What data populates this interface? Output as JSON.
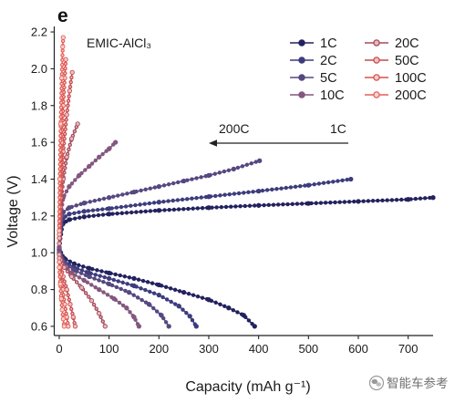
{
  "chart_data": {
    "type": "line",
    "panel_label": "e",
    "xlabel": "Capacity (mAh g⁻¹)",
    "ylabel": "Voltage (V)",
    "xlim": [
      -10,
      750
    ],
    "ylim": [
      0.55,
      2.23
    ],
    "x_ticks": [
      "0",
      "100",
      "200",
      "300",
      "400",
      "500",
      "600",
      "700"
    ],
    "y_ticks": [
      "0.6",
      "0.8",
      "1.0",
      "1.2",
      "1.4",
      "1.6",
      "1.8",
      "2.0",
      "2.2"
    ],
    "grid": false,
    "legend_position": "top-right",
    "annotations": {
      "electrolyte": "EMIC-AlCl₃",
      "arrow_to": "200C",
      "arrow_from": "1C"
    },
    "series": [
      {
        "name": "1C",
        "color": "#23225e",
        "marker_fill": "#23225e",
        "charge": {
          "x": [
            0,
            3,
            8,
            20,
            50,
            100,
            200,
            300,
            400,
            500,
            600,
            700,
            750
          ],
          "y": [
            1.0,
            1.1,
            1.16,
            1.18,
            1.195,
            1.21,
            1.23,
            1.245,
            1.257,
            1.268,
            1.279,
            1.29,
            1.3
          ]
        },
        "discharge": {
          "x": [
            0,
            3,
            10,
            30,
            60,
            100,
            150,
            200,
            250,
            300,
            340,
            370,
            392
          ],
          "y": [
            1.03,
            1.0,
            0.97,
            0.94,
            0.915,
            0.89,
            0.86,
            0.825,
            0.785,
            0.745,
            0.7,
            0.66,
            0.6
          ]
        }
      },
      {
        "name": "2C",
        "color": "#3d3c7c",
        "marker_fill": "#3d3c7c",
        "charge": {
          "x": [
            0,
            3,
            8,
            20,
            50,
            100,
            200,
            300,
            400,
            500,
            585
          ],
          "y": [
            1.0,
            1.12,
            1.19,
            1.21,
            1.225,
            1.24,
            1.275,
            1.305,
            1.335,
            1.367,
            1.4
          ]
        },
        "discharge": {
          "x": [
            0,
            3,
            10,
            30,
            60,
            100,
            150,
            200,
            240,
            262,
            275
          ],
          "y": [
            1.02,
            0.99,
            0.955,
            0.92,
            0.89,
            0.86,
            0.82,
            0.77,
            0.71,
            0.655,
            0.6
          ]
        }
      },
      {
        "name": "5C",
        "color": "#564880",
        "marker_fill": "#564880",
        "charge": {
          "x": [
            0,
            3,
            8,
            20,
            50,
            100,
            150,
            200,
            250,
            300,
            350,
            402
          ],
          "y": [
            1.02,
            1.15,
            1.22,
            1.245,
            1.27,
            1.3,
            1.33,
            1.36,
            1.39,
            1.42,
            1.455,
            1.5
          ]
        },
        "discharge": {
          "x": [
            0,
            3,
            10,
            30,
            60,
            100,
            140,
            180,
            205,
            220
          ],
          "y": [
            1.01,
            0.98,
            0.945,
            0.905,
            0.87,
            0.83,
            0.785,
            0.72,
            0.66,
            0.6
          ]
        }
      },
      {
        "name": "10C",
        "color": "#83577f",
        "marker_fill": "#83577f",
        "charge": {
          "x": [
            0,
            3,
            8,
            20,
            40,
            60,
            80,
            100,
            113
          ],
          "y": [
            1.03,
            1.2,
            1.3,
            1.36,
            1.42,
            1.47,
            1.52,
            1.565,
            1.6
          ]
        },
        "discharge": {
          "x": [
            0,
            3,
            10,
            25,
            50,
            80,
            110,
            135,
            150,
            160
          ],
          "y": [
            1.0,
            0.97,
            0.93,
            0.89,
            0.85,
            0.8,
            0.75,
            0.7,
            0.65,
            0.6
          ]
        }
      },
      {
        "name": "20C",
        "color": "#a24b5b",
        "marker_fill": "#e8b9bf",
        "charge": {
          "x": [
            0,
            3,
            8,
            15,
            25,
            37
          ],
          "y": [
            1.05,
            1.25,
            1.4,
            1.52,
            1.62,
            1.7
          ]
        },
        "discharge": {
          "x": [
            0,
            3,
            10,
            25,
            45,
            65,
            80,
            92
          ],
          "y": [
            0.99,
            0.96,
            0.92,
            0.87,
            0.81,
            0.74,
            0.67,
            0.6
          ]
        }
      },
      {
        "name": "50C",
        "color": "#c64b4f",
        "marker_fill": "#f1c1c1",
        "charge": {
          "x": [
            0,
            3,
            8,
            15,
            21,
            26
          ],
          "y": [
            1.08,
            1.3,
            1.55,
            1.75,
            1.88,
            1.98
          ]
        },
        "discharge": {
          "x": [
            0,
            3,
            8,
            15,
            22,
            28,
            32
          ],
          "y": [
            0.97,
            0.93,
            0.87,
            0.8,
            0.72,
            0.65,
            0.6
          ]
        }
      },
      {
        "name": "100C",
        "color": "#d9504b",
        "marker_fill": "#f6cccc",
        "charge": {
          "x": [
            0,
            2,
            5,
            8,
            11,
            13
          ],
          "y": [
            1.1,
            1.35,
            1.6,
            1.8,
            1.95,
            2.05
          ]
        },
        "discharge": {
          "x": [
            0,
            3,
            7,
            11,
            15,
            18
          ],
          "y": [
            0.95,
            0.88,
            0.8,
            0.72,
            0.65,
            0.6
          ]
        }
      },
      {
        "name": "200C",
        "color": "#e55f57",
        "marker_fill": "#f8d3d1",
        "charge": {
          "x": [
            0,
            1,
            3,
            5,
            7,
            8
          ],
          "y": [
            1.12,
            1.4,
            1.7,
            1.95,
            2.12,
            2.17
          ]
        },
        "discharge": {
          "x": [
            0,
            2,
            4,
            6,
            8,
            10
          ],
          "y": [
            0.92,
            0.83,
            0.75,
            0.69,
            0.64,
            0.6
          ]
        }
      }
    ]
  },
  "watermark": {
    "text": "智能车参考",
    "icon": "wechat-icon"
  }
}
